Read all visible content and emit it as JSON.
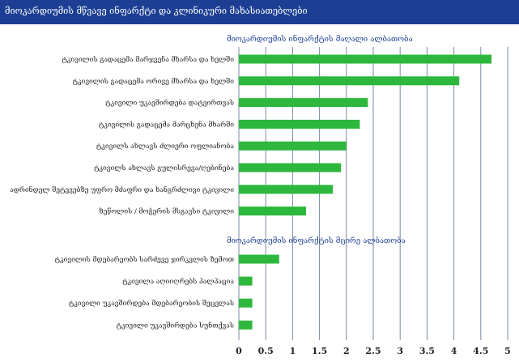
{
  "title": "მიოკარდიუმის მწვავე ინფარქტი და კლინიკური მახასიათებლები",
  "colors": {
    "bar": "#2db83d",
    "grid": "#7a8aa0",
    "header_bg": "#1c3f94",
    "group_title": "#1c3f94"
  },
  "chart_data": {
    "type": "bar",
    "orientation": "horizontal",
    "xlim": [
      0,
      5
    ],
    "x_ticks": [
      "0",
      "0.5",
      "1",
      "1.5",
      "2",
      "2.5",
      "3",
      "3.5",
      "4",
      "4.5",
      "5"
    ],
    "grid": true,
    "groups": [
      {
        "title": "მიოკარდიუმის ინფარქტის მაღალი ალბათობა",
        "categories": [
          "ტკივილის გადაცემა მარჯვენა მხარსა და ხელში",
          "ტკივილის გადაცემა ორივე მხარსა და ხელში",
          "ტკივილი უკავშირდება დატვირთვას",
          "ტკივილის გადაცემა მარცხენა მხარში",
          "ტკივილს ახლავს ძლიერი ოფლიანობა",
          "ტკივილს ახლავს გულისრევა/ღებინება",
          "ადრინდელ შეტევებზე უფრო მძაფრი და ხანგრძლივი ტკივილი",
          "ზეწოლის / მოჭერის მსგავსი ტკივილი"
        ],
        "values": [
          4.7,
          4.1,
          2.4,
          2.25,
          2.0,
          1.9,
          1.75,
          1.25
        ]
      },
      {
        "title": "მიოკარდიუმის ინფარქტის მცირე ალბათობა",
        "categories": [
          "ტკივილის მდებარეობს სარძევე ჯირკვლის ზემოთ",
          "ტკივილა აღიიღრებს პალპაცია",
          "ტკივილი უკავშირდება მდებარეობის შეცვლას",
          "ტკივილი უკავშირდება სუნთქვას"
        ],
        "values": [
          0.75,
          0.25,
          0.25,
          0.25
        ]
      }
    ]
  }
}
